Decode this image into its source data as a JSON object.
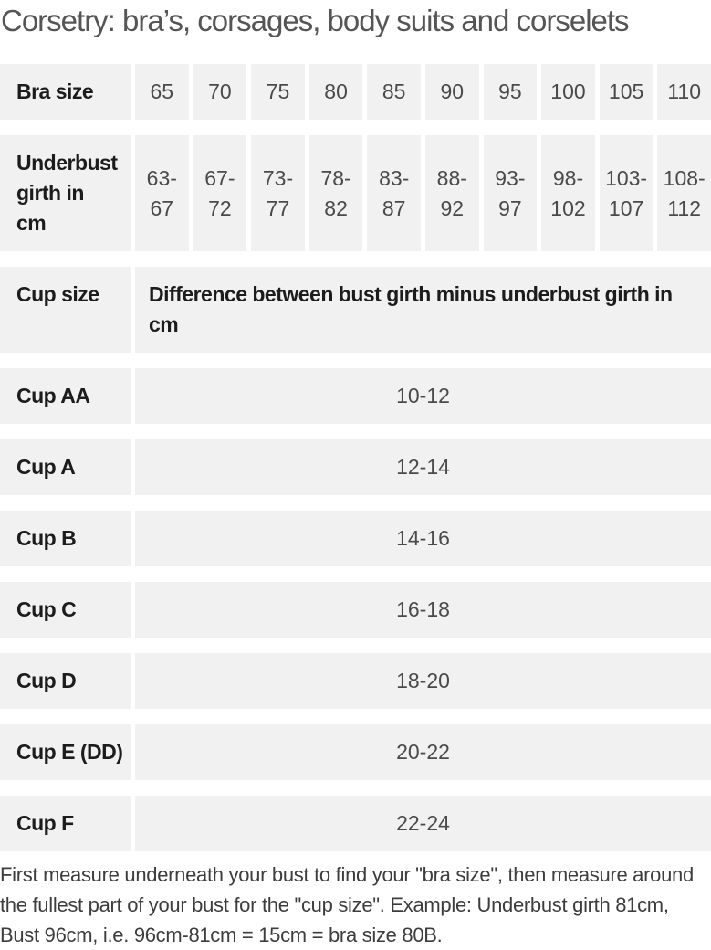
{
  "page_title": "Corsetry: bra’s, corsages, body suits and corselets",
  "size_table": {
    "bra_size_row": {
      "label": "Bra size",
      "values": [
        "65",
        "70",
        "75",
        "80",
        "85",
        "90",
        "95",
        "100",
        "105",
        "110"
      ]
    },
    "underbust_row": {
      "label": "Underbust girth in cm",
      "values": [
        "63-67",
        "67-72",
        "73-77",
        "78-82",
        "83-87",
        "88-92",
        "93-97",
        "98-102",
        "103-107",
        "108-112"
      ]
    },
    "cup_header_row": {
      "label": "Cup size",
      "description": "Difference between bust girth minus underbust girth in cm"
    },
    "cup_rows": [
      {
        "label": "Cup AA",
        "value": "10-12"
      },
      {
        "label": "Cup A",
        "value": "12-14"
      },
      {
        "label": "Cup B",
        "value": "14-16"
      },
      {
        "label": "Cup C",
        "value": "16-18"
      },
      {
        "label": "Cup D",
        "value": "18-20"
      },
      {
        "label": "Cup E (DD)",
        "value": "20-22"
      },
      {
        "label": "Cup F",
        "value": "22-24"
      }
    ]
  },
  "footer_note": "First measure underneath your bust to find your \"bra size\", then measure around the fullest part of your bust for the \"cup size\". Example: Underbust girth 81cm, Bust 96cm, i.e. 96cm-81cm = 15cm = bra size 80B.",
  "colors": {
    "cell_background": "#f1f1f2",
    "label_text": "#1c1c1c",
    "value_text": "#4a4a4a",
    "title_text": "#555555",
    "note_text": "#3d3d3d"
  }
}
